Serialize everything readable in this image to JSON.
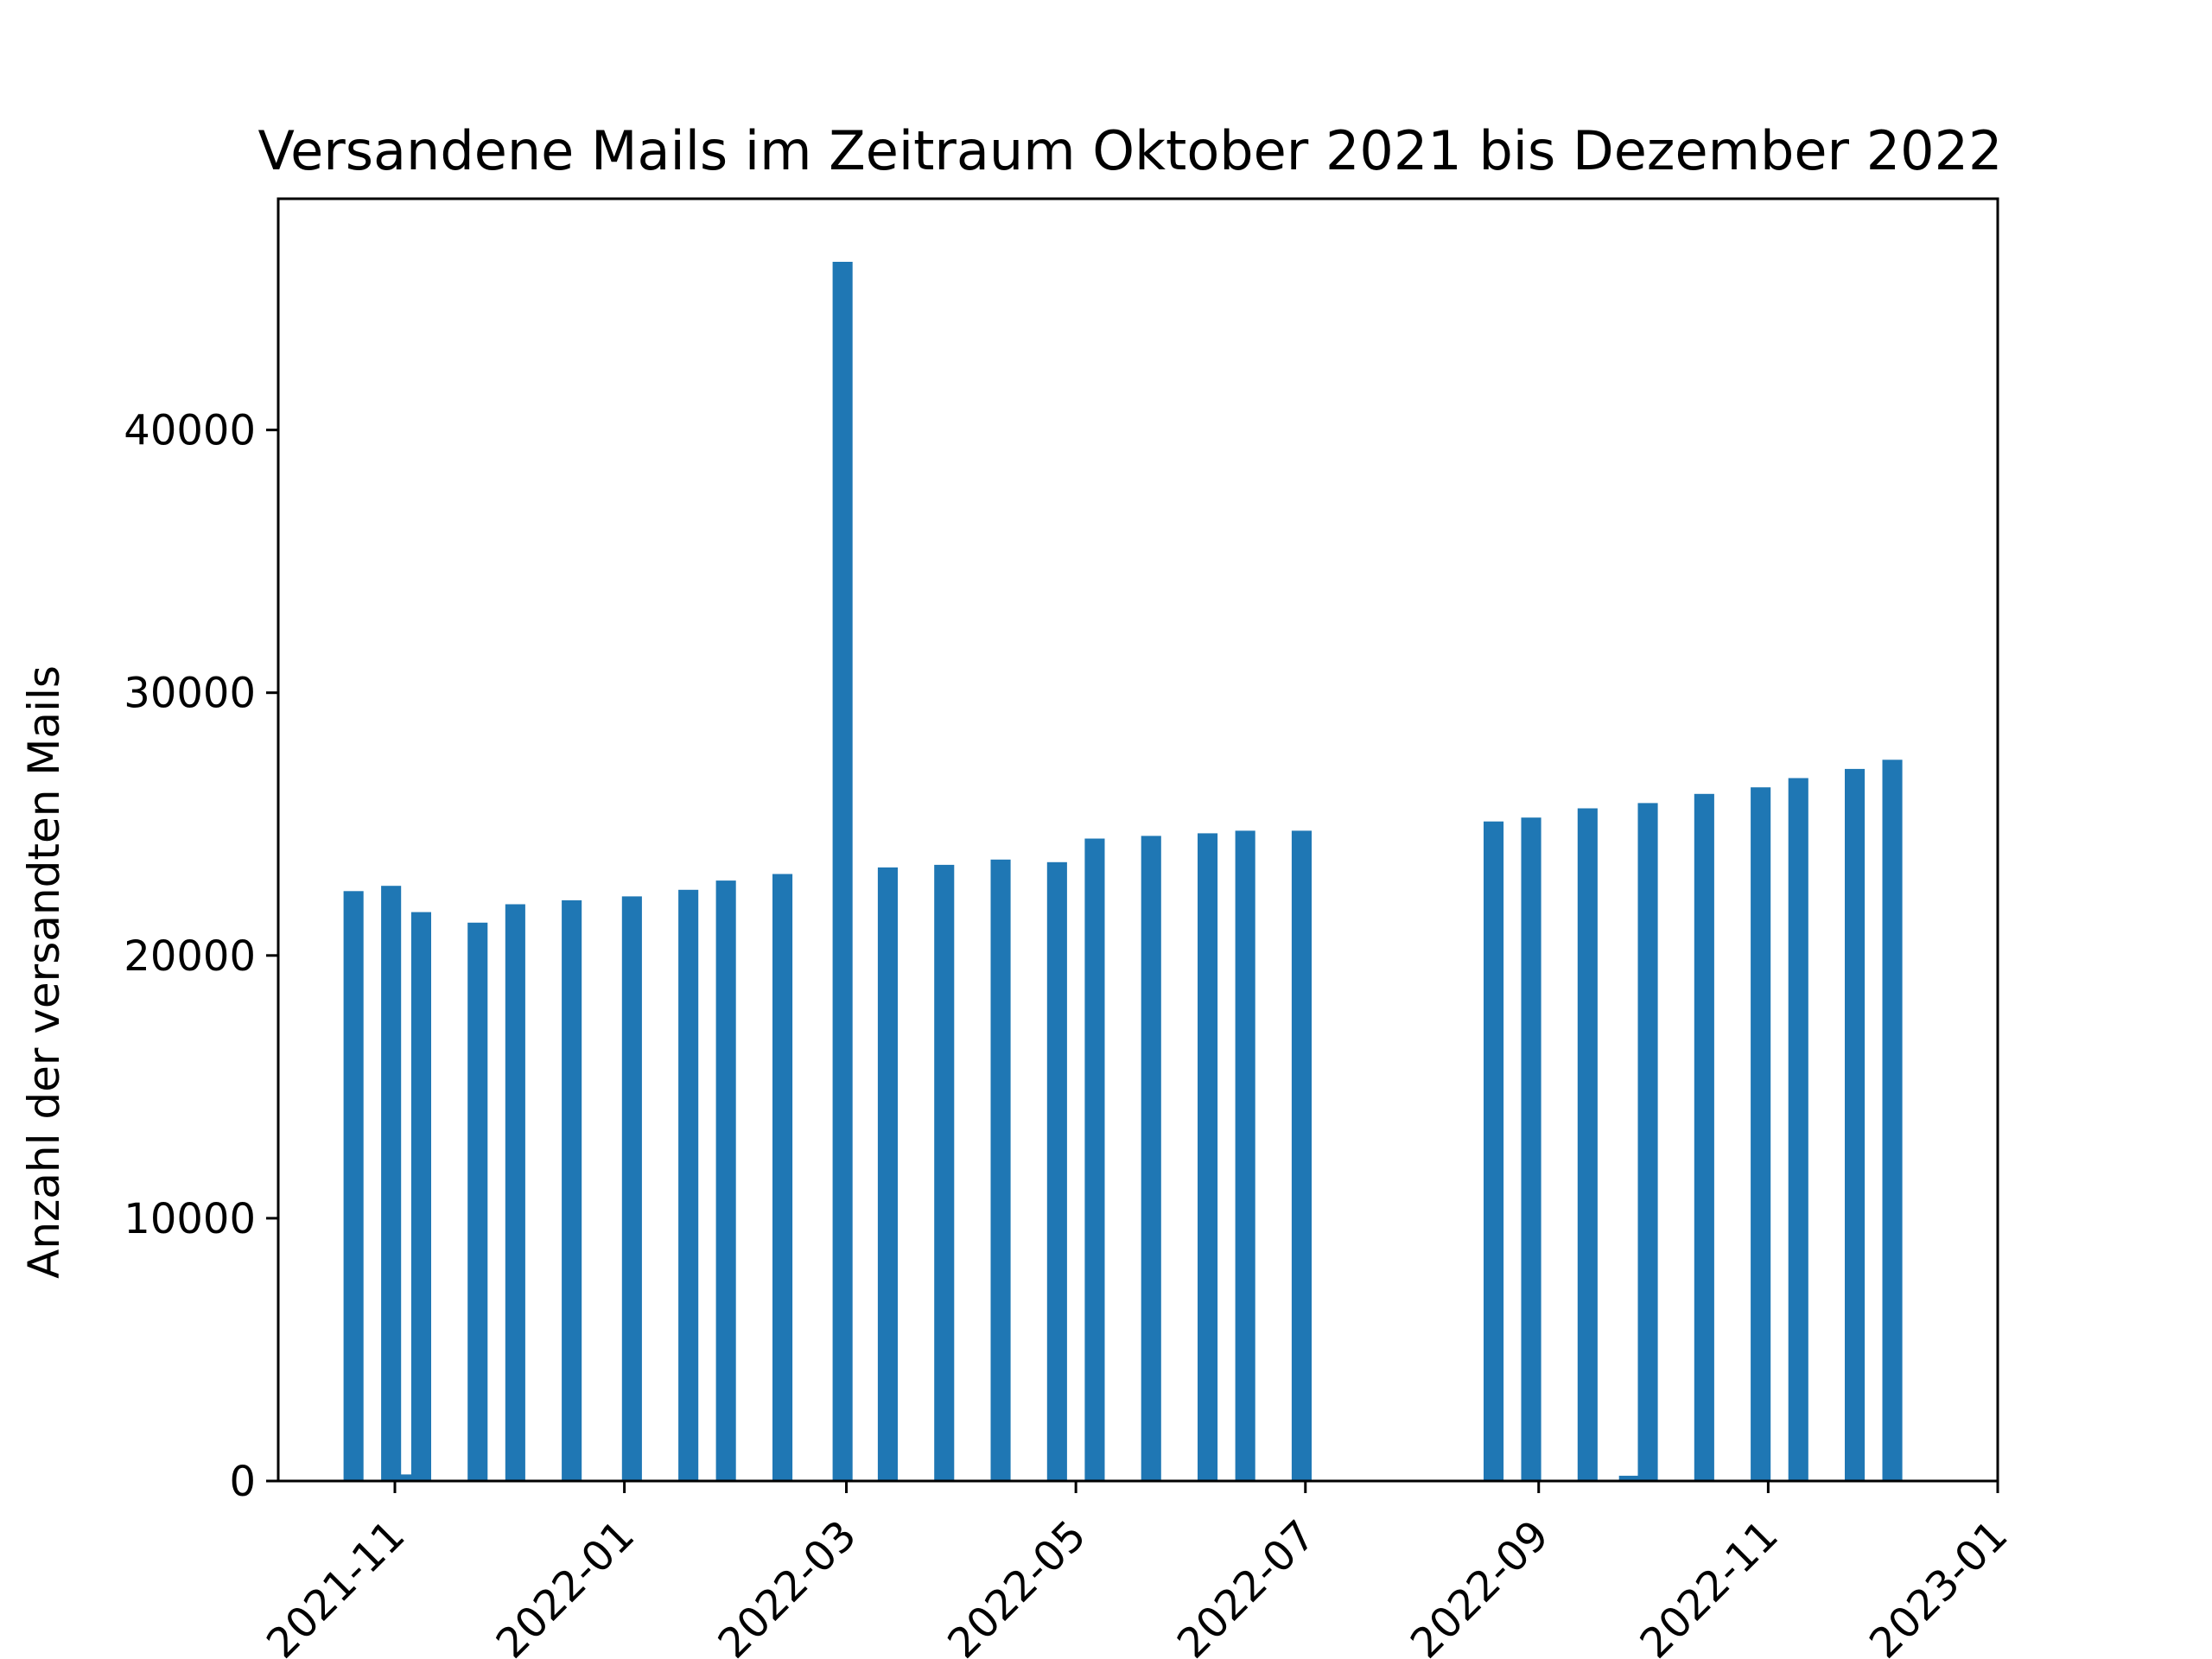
{
  "chart_data": {
    "type": "bar",
    "title": "Versandene Mails im Zeitraum Oktober 2021 bis Dezember 2022",
    "xlabel": "",
    "ylabel": "Anzahl der versandten Mails",
    "x_axis": {
      "kind": "date",
      "range": [
        "2021-10-01",
        "2023-01-01"
      ],
      "tick_labels": [
        "2021-11",
        "2022-01",
        "2022-03",
        "2022-05",
        "2022-07",
        "2022-09",
        "2022-11",
        "2023-01"
      ]
    },
    "y_axis": {
      "range": [
        0,
        48800
      ],
      "tick_values": [
        0,
        10000,
        20000,
        30000,
        40000
      ],
      "tick_labels": [
        "0",
        "10000",
        "20000",
        "30000",
        "40000"
      ]
    },
    "grid": false,
    "color": "#1f77b4",
    "bars": [
      {
        "date": "2021-10-21",
        "value": 22450
      },
      {
        "date": "2021-10-31",
        "value": 22650
      },
      {
        "date": "2021-11-03",
        "value": 250
      },
      {
        "date": "2021-11-08",
        "value": 21650
      },
      {
        "date": "2021-11-23",
        "value": 21250
      },
      {
        "date": "2021-12-03",
        "value": 21950
      },
      {
        "date": "2021-12-18",
        "value": 22100
      },
      {
        "date": "2022-01-03",
        "value": 22250
      },
      {
        "date": "2022-01-18",
        "value": 22500
      },
      {
        "date": "2022-01-28",
        "value": 22850
      },
      {
        "date": "2022-02-12",
        "value": 23100
      },
      {
        "date": "2022-02-28",
        "value": 46400
      },
      {
        "date": "2022-03-12",
        "value": 23350
      },
      {
        "date": "2022-03-27",
        "value": 23450
      },
      {
        "date": "2022-04-11",
        "value": 23650
      },
      {
        "date": "2022-04-26",
        "value": 23550
      },
      {
        "date": "2022-05-06",
        "value": 24450
      },
      {
        "date": "2022-05-21",
        "value": 24550
      },
      {
        "date": "2022-06-05",
        "value": 24650
      },
      {
        "date": "2022-06-15",
        "value": 24750
      },
      {
        "date": "2022-06-30",
        "value": 24750
      },
      {
        "date": "2022-08-20",
        "value": 25100
      },
      {
        "date": "2022-08-30",
        "value": 25250
      },
      {
        "date": "2022-09-14",
        "value": 25600
      },
      {
        "date": "2022-09-25",
        "value": 200
      },
      {
        "date": "2022-09-30",
        "value": 25800
      },
      {
        "date": "2022-10-15",
        "value": 26150
      },
      {
        "date": "2022-10-30",
        "value": 26400
      },
      {
        "date": "2022-11-09",
        "value": 26750
      },
      {
        "date": "2022-11-24",
        "value": 27100
      },
      {
        "date": "2022-12-04",
        "value": 27450
      }
    ]
  }
}
